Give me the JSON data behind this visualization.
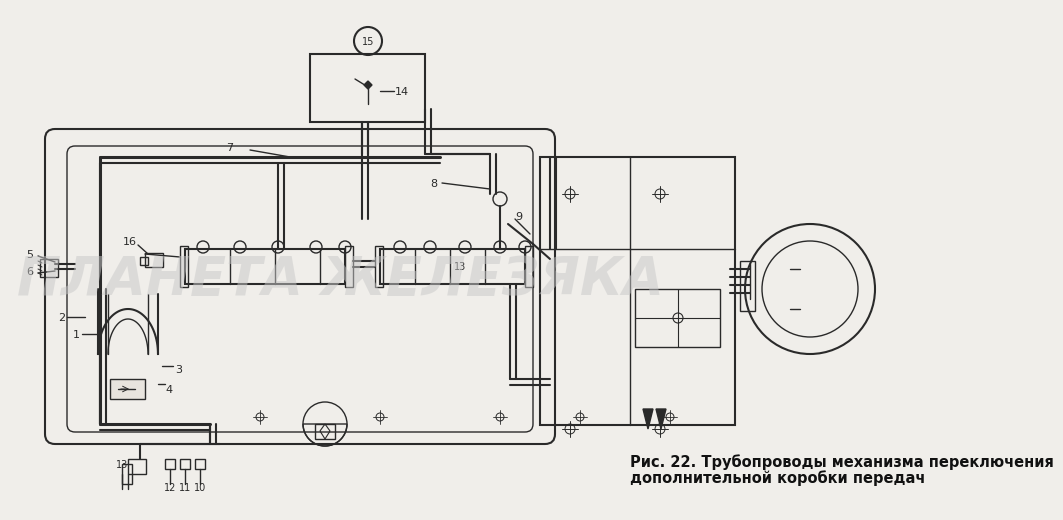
{
  "title_line1": "Рис. 22. Трубопроводы механизма переключения",
  "title_line2": "дополнительной коробки передач",
  "watermark": "ПЛАНЕТА ЖЕЛЕЗЯКА",
  "bg_color": "#f0eeea",
  "diagram_color": "#2a2a2a",
  "watermark_color": "#c8c8c8",
  "title_fontsize": 10.5,
  "watermark_fontsize": 38,
  "fig_width": 10.0,
  "fig_height": 5.01
}
